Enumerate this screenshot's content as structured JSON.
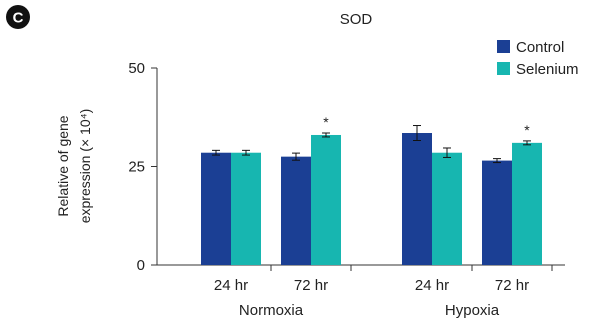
{
  "panel_label": "C",
  "chart_data": {
    "type": "bar",
    "title": "SOD",
    "ylabel_line1": "Relative of gene",
    "ylabel_line2": "expression (× 10⁴)",
    "ylim": [
      0,
      50
    ],
    "yticks": [
      0,
      25,
      50
    ],
    "groups": [
      {
        "name": "Normoxia",
        "categories": [
          "24 hr",
          "72 hr"
        ]
      },
      {
        "name": "Hypoxia",
        "categories": [
          "24 hr",
          "72 hr"
        ]
      }
    ],
    "categories": [
      "24 hr",
      "72 hr",
      "24 hr",
      "72 hr"
    ],
    "series": [
      {
        "name": "Control",
        "color": "#1b3f94",
        "values": [
          28.5,
          27.5,
          33.5,
          26.5
        ],
        "errors": [
          0.6,
          0.9,
          1.9,
          0.5
        ],
        "significant": [
          false,
          false,
          false,
          false
        ]
      },
      {
        "name": "Selenium",
        "color": "#17b6b0",
        "values": [
          28.5,
          33.0,
          28.5,
          31.0
        ],
        "errors": [
          0.6,
          0.5,
          1.2,
          0.5
        ],
        "significant": [
          false,
          true,
          false,
          true
        ]
      }
    ],
    "significance_marker": "*",
    "legend_position": "top-right",
    "grid": false
  }
}
